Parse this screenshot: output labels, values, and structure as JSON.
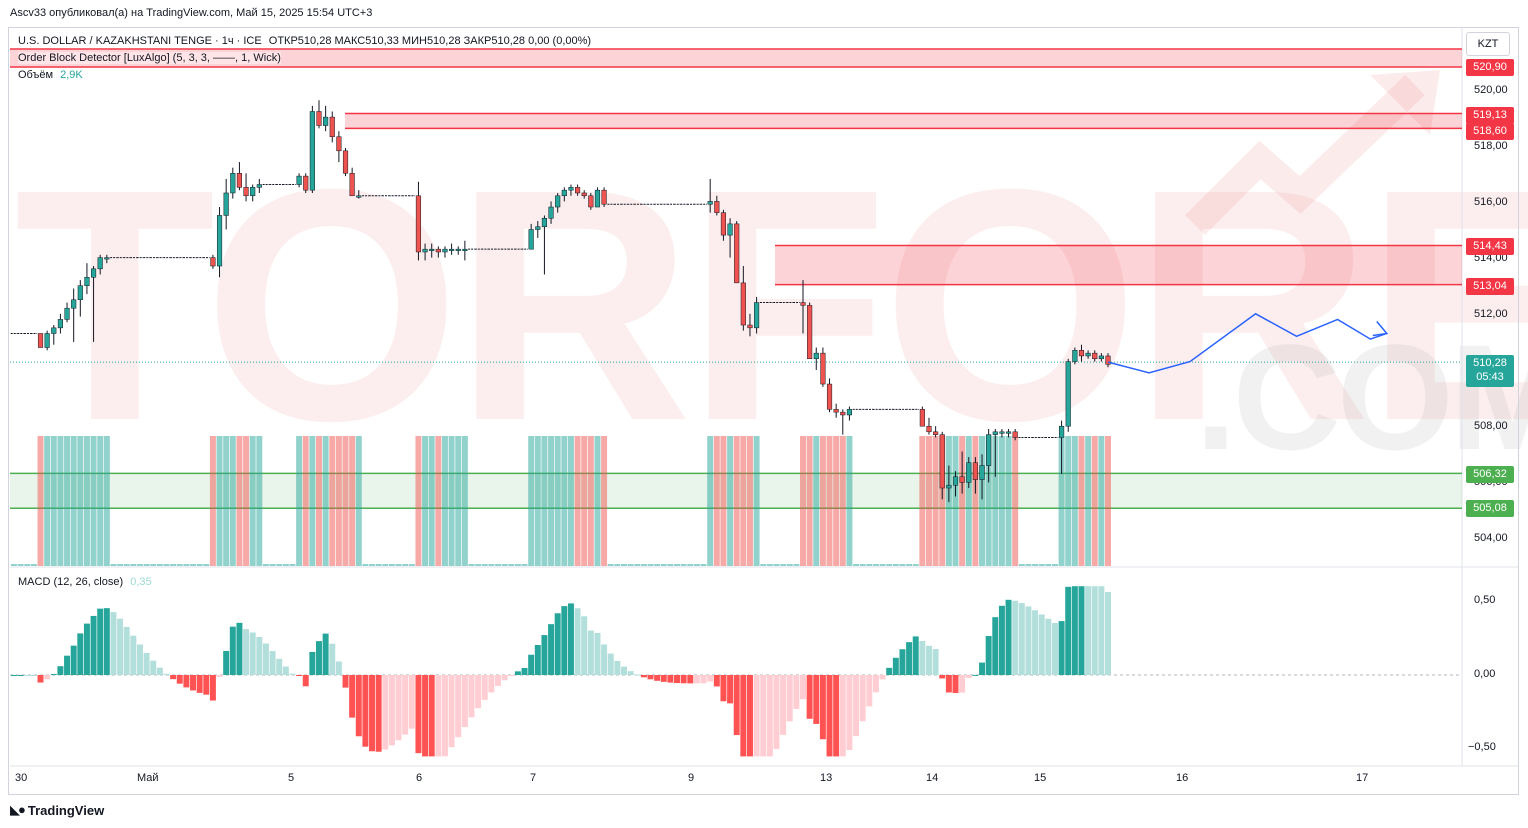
{
  "header": {
    "publisher_line": "Ascv33 опубликовал(а) на TradingView.com, Май 15, 2025 15:54 UTC+3"
  },
  "legend": {
    "symbol_line": "U.S. DOLLAR / KAZAKHSTANI TENGE · 1ч · ICE",
    "ohlc": "ОТКР510,28  МАКС510,33  МИН510,28  ЗАКР510,28  0,00 (0,00%)",
    "indicator": "Order Block Detector [LuxAlgo] (5, 3, 3, ——, 1, Wick)",
    "volume_label": "Объём",
    "volume_value": "2,9K",
    "macd_label": "MACD (12, 26, close)",
    "macd_value": "0,35"
  },
  "currency_button": "KZT",
  "price_axis": {
    "ticks": [
      "520,00",
      "518,00",
      "516,00",
      "514,00",
      "512,00",
      "508,00",
      "506,00",
      "504,00"
    ],
    "labels": [
      {
        "value": "520,90",
        "color": "#f23645"
      },
      {
        "value": "519,13",
        "color": "#f23645"
      },
      {
        "value": "518,60",
        "color": "#f23645"
      },
      {
        "value": "514,43",
        "color": "#f23645"
      },
      {
        "value": "513,04",
        "color": "#f23645"
      },
      {
        "value": "510,28",
        "sub": "05:43",
        "color": "#26a69a"
      },
      {
        "value": "506,32",
        "color": "#4caf50"
      },
      {
        "value": "505,08",
        "color": "#4caf50"
      }
    ]
  },
  "macd_axis": {
    "ticks": [
      "0,50",
      "0,00",
      "−0,50"
    ]
  },
  "date_axis": {
    "ticks": [
      "30",
      "Май",
      "5",
      "6",
      "7",
      "9",
      "13",
      "14",
      "15",
      "16",
      "17"
    ]
  },
  "watermark": {
    "main": "TORFOREX",
    "sub": ".COM"
  },
  "colors": {
    "up": "#26a69a",
    "down": "#ef5350",
    "bear_zone": "#f23645",
    "bull_zone": "#4caf50",
    "forecast": "#2962ff"
  },
  "footer": {
    "brand": "TradingView"
  },
  "chart_data": {
    "type": "candlestick",
    "price_range": [
      503,
      522
    ],
    "order_blocks": [
      {
        "kind": "bearish",
        "top": 520.9,
        "bottom": 520.9
      },
      {
        "kind": "bearish",
        "top": 519.13,
        "bottom": 518.6
      },
      {
        "kind": "bearish",
        "top": 514.43,
        "bottom": 513.04
      },
      {
        "kind": "bullish",
        "top": 506.32,
        "bottom": 505.08
      }
    ],
    "last_price": 510.28,
    "candles": [
      [
        511.3,
        511.3,
        511.2,
        511.3
      ],
      [
        511.3,
        511.3,
        511.2,
        511.3
      ],
      [
        511.3,
        511.3,
        511.2,
        511.3
      ],
      [
        511.3,
        511.3,
        511.2,
        511.3
      ],
      [
        511.3,
        511.3,
        510.8,
        510.8
      ],
      [
        510.8,
        511.4,
        510.7,
        511.3
      ],
      [
        511.3,
        511.6,
        510.9,
        511.5
      ],
      [
        511.5,
        512.0,
        511.3,
        511.8
      ],
      [
        511.8,
        512.4,
        511.7,
        512.2
      ],
      [
        512.2,
        512.9,
        511.0,
        512.5
      ],
      [
        512.5,
        513.2,
        511.9,
        513.0
      ],
      [
        513.0,
        513.8,
        512.7,
        513.3
      ],
      [
        513.3,
        513.7,
        511.0,
        513.6
      ],
      [
        513.6,
        514.1,
        513.4,
        514.0
      ],
      [
        514.0,
        514.1,
        513.8,
        514.0
      ],
      [
        514.0,
        514.1,
        513.9,
        514.0
      ],
      [
        514.0,
        514.1,
        513.9,
        514.0
      ],
      [
        514.0,
        514.1,
        513.9,
        514.0
      ],
      [
        514.0,
        514.1,
        513.9,
        514.0
      ],
      [
        514.0,
        514.1,
        513.9,
        514.0
      ],
      [
        514.0,
        514.1,
        513.9,
        514.0
      ],
      [
        514.0,
        514.1,
        513.9,
        514.0
      ],
      [
        514.0,
        514.1,
        513.9,
        514.0
      ],
      [
        514.0,
        514.1,
        513.9,
        514.0
      ],
      [
        514.0,
        514.1,
        513.9,
        514.0
      ],
      [
        514.0,
        514.1,
        513.9,
        514.0
      ],
      [
        514.0,
        514.1,
        513.9,
        514.0
      ],
      [
        514.0,
        514.1,
        513.9,
        514.0
      ],
      [
        514.0,
        514.1,
        513.9,
        514.0
      ],
      [
        514.0,
        514.1,
        513.9,
        514.0
      ],
      [
        514.0,
        514.1,
        513.6,
        513.7
      ],
      [
        513.7,
        515.8,
        513.3,
        515.5
      ],
      [
        515.5,
        516.8,
        515.0,
        516.3
      ],
      [
        516.3,
        517.2,
        516.1,
        517.0
      ],
      [
        517.0,
        517.4,
        516.4,
        516.5
      ],
      [
        516.5,
        517.0,
        516.0,
        516.2
      ],
      [
        516.2,
        516.6,
        516.0,
        516.5
      ],
      [
        516.5,
        516.8,
        516.3,
        516.6
      ],
      [
        516.6,
        516.7,
        516.5,
        516.6
      ],
      [
        516.6,
        516.7,
        516.5,
        516.6
      ],
      [
        516.6,
        516.7,
        516.5,
        516.6
      ],
      [
        516.6,
        516.7,
        516.5,
        516.6
      ],
      [
        516.6,
        516.7,
        516.5,
        516.6
      ],
      [
        516.6,
        517.0,
        516.5,
        516.9
      ],
      [
        516.9,
        517.0,
        516.3,
        516.4
      ],
      [
        516.4,
        519.4,
        516.3,
        519.2
      ],
      [
        519.2,
        519.6,
        518.6,
        518.7
      ],
      [
        518.7,
        519.4,
        518.5,
        519.0
      ],
      [
        519.0,
        519.2,
        518.1,
        518.3
      ],
      [
        518.3,
        518.5,
        517.4,
        517.8
      ],
      [
        517.8,
        517.9,
        516.9,
        517.0
      ],
      [
        517.0,
        517.2,
        516.2,
        516.2
      ],
      [
        516.2,
        516.4,
        516.1,
        516.2
      ],
      [
        516.2,
        516.3,
        516.1,
        516.2
      ],
      [
        516.2,
        516.3,
        516.1,
        516.2
      ],
      [
        516.2,
        516.3,
        516.1,
        516.2
      ],
      [
        516.2,
        516.3,
        516.1,
        516.2
      ],
      [
        516.2,
        516.3,
        516.1,
        516.2
      ],
      [
        516.2,
        516.3,
        516.1,
        516.2
      ],
      [
        516.2,
        516.3,
        516.1,
        516.2
      ],
      [
        516.2,
        516.3,
        516.1,
        516.2
      ],
      [
        516.2,
        516.7,
        513.9,
        514.2
      ],
      [
        514.2,
        514.5,
        513.9,
        514.3
      ],
      [
        514.3,
        514.5,
        514.0,
        514.3
      ],
      [
        514.3,
        514.4,
        514.0,
        514.2
      ],
      [
        514.2,
        514.4,
        514.0,
        514.3
      ],
      [
        514.3,
        514.5,
        514.1,
        514.3
      ],
      [
        514.3,
        514.4,
        514.1,
        514.3
      ],
      [
        514.3,
        514.6,
        513.9,
        514.3
      ],
      [
        514.3,
        514.4,
        514.2,
        514.3
      ],
      [
        514.3,
        514.4,
        514.2,
        514.3
      ],
      [
        514.3,
        514.4,
        514.2,
        514.3
      ],
      [
        514.3,
        514.4,
        514.2,
        514.3
      ],
      [
        514.3,
        514.4,
        514.2,
        514.3
      ],
      [
        514.3,
        514.4,
        514.2,
        514.3
      ],
      [
        514.3,
        514.4,
        514.2,
        514.3
      ],
      [
        514.3,
        514.4,
        514.2,
        514.3
      ],
      [
        514.3,
        514.4,
        514.2,
        514.3
      ],
      [
        514.3,
        515.2,
        514.3,
        515.0
      ],
      [
        515.0,
        515.3,
        514.7,
        515.1
      ],
      [
        515.1,
        515.5,
        513.4,
        515.4
      ],
      [
        515.4,
        516.0,
        515.2,
        515.8
      ],
      [
        515.8,
        516.3,
        515.6,
        516.2
      ],
      [
        516.2,
        516.5,
        516.0,
        516.4
      ],
      [
        516.4,
        516.6,
        516.2,
        516.5
      ],
      [
        516.5,
        516.6,
        516.2,
        516.3
      ],
      [
        516.3,
        516.4,
        516.1,
        516.2
      ],
      [
        516.2,
        516.3,
        515.7,
        515.8
      ],
      [
        515.8,
        516.5,
        515.8,
        516.4
      ],
      [
        516.4,
        516.5,
        515.8,
        515.9
      ],
      [
        515.9,
        516.0,
        515.8,
        515.9
      ],
      [
        515.9,
        516.0,
        515.8,
        515.9
      ],
      [
        515.9,
        516.0,
        515.8,
        515.9
      ],
      [
        515.9,
        516.0,
        515.8,
        515.9
      ],
      [
        515.9,
        516.0,
        515.8,
        515.9
      ],
      [
        515.9,
        516.0,
        515.8,
        515.9
      ],
      [
        515.9,
        516.0,
        515.8,
        515.9
      ],
      [
        515.9,
        516.0,
        515.8,
        515.9
      ],
      [
        515.9,
        516.0,
        515.8,
        515.9
      ],
      [
        515.9,
        516.0,
        515.8,
        515.9
      ],
      [
        515.9,
        516.0,
        515.8,
        515.9
      ],
      [
        515.9,
        516.0,
        515.8,
        515.9
      ],
      [
        515.9,
        516.0,
        515.8,
        515.9
      ],
      [
        515.9,
        516.0,
        515.8,
        515.9
      ],
      [
        515.9,
        516.0,
        515.8,
        515.9
      ],
      [
        515.9,
        516.8,
        515.6,
        516.0
      ],
      [
        516.0,
        516.2,
        515.5,
        515.6
      ],
      [
        515.6,
        515.7,
        514.6,
        514.8
      ],
      [
        514.8,
        515.4,
        514.0,
        515.2
      ],
      [
        515.2,
        515.3,
        513.1,
        513.1
      ],
      [
        513.1,
        513.7,
        511.4,
        511.6
      ],
      [
        511.6,
        512.0,
        511.2,
        511.5
      ],
      [
        511.5,
        512.6,
        511.3,
        512.4
      ],
      [
        512.4,
        512.5,
        512.3,
        512.4
      ],
      [
        512.4,
        512.5,
        512.3,
        512.4
      ],
      [
        512.4,
        512.5,
        512.3,
        512.4
      ],
      [
        512.4,
        512.5,
        512.3,
        512.4
      ],
      [
        512.4,
        512.5,
        512.3,
        512.4
      ],
      [
        512.4,
        512.5,
        512.3,
        512.4
      ],
      [
        512.4,
        513.2,
        511.3,
        512.3
      ],
      [
        512.3,
        512.4,
        510.4,
        510.4
      ],
      [
        510.4,
        510.8,
        510.0,
        510.6
      ],
      [
        510.6,
        510.8,
        509.4,
        509.5
      ],
      [
        509.5,
        509.7,
        508.5,
        508.6
      ],
      [
        508.6,
        508.8,
        508.3,
        508.5
      ],
      [
        508.5,
        508.6,
        507.7,
        508.4
      ],
      [
        508.4,
        508.7,
        508.2,
        508.6
      ],
      [
        508.6,
        508.7,
        508.5,
        508.6
      ],
      [
        508.6,
        508.7,
        508.5,
        508.6
      ],
      [
        508.6,
        508.7,
        508.5,
        508.6
      ],
      [
        508.6,
        508.7,
        508.5,
        508.6
      ],
      [
        508.6,
        508.7,
        508.5,
        508.6
      ],
      [
        508.6,
        508.7,
        508.5,
        508.6
      ],
      [
        508.6,
        508.7,
        508.5,
        508.6
      ],
      [
        508.6,
        508.7,
        508.5,
        508.6
      ],
      [
        508.6,
        508.7,
        508.5,
        508.6
      ],
      [
        508.6,
        508.7,
        508.5,
        508.6
      ],
      [
        508.6,
        508.7,
        508.0,
        508.0
      ],
      [
        508.0,
        508.3,
        507.7,
        507.8
      ],
      [
        507.8,
        508.0,
        507.6,
        507.7
      ],
      [
        507.7,
        507.8,
        505.4,
        505.8
      ],
      [
        505.8,
        506.6,
        505.3,
        505.9
      ],
      [
        505.9,
        506.4,
        505.5,
        506.2
      ],
      [
        506.2,
        507.1,
        505.6,
        506.0
      ],
      [
        506.0,
        506.9,
        505.8,
        506.7
      ],
      [
        506.7,
        506.9,
        505.6,
        506.1
      ],
      [
        506.1,
        507.0,
        505.4,
        506.6
      ],
      [
        506.6,
        507.9,
        506.0,
        507.7
      ],
      [
        507.7,
        507.9,
        506.2,
        507.8
      ],
      [
        507.8,
        507.9,
        507.6,
        507.8
      ],
      [
        507.8,
        507.9,
        507.6,
        507.8
      ],
      [
        507.8,
        507.9,
        507.5,
        507.6
      ],
      [
        507.6,
        507.7,
        507.5,
        507.6
      ],
      [
        507.6,
        507.7,
        507.5,
        507.6
      ],
      [
        507.6,
        507.7,
        507.5,
        507.6
      ],
      [
        507.6,
        507.7,
        507.5,
        507.6
      ],
      [
        507.6,
        507.7,
        507.5,
        507.6
      ],
      [
        507.6,
        507.7,
        507.5,
        507.6
      ],
      [
        507.6,
        508.2,
        506.3,
        508.0
      ],
      [
        508.0,
        510.4,
        507.8,
        510.3
      ],
      [
        510.3,
        510.8,
        510.2,
        510.7
      ],
      [
        510.7,
        510.9,
        510.3,
        510.5
      ],
      [
        510.5,
        510.7,
        510.4,
        510.6
      ],
      [
        510.6,
        510.7,
        510.3,
        510.4
      ],
      [
        510.4,
        510.6,
        510.3,
        510.5
      ],
      [
        510.5,
        510.6,
        510.1,
        510.2
      ]
    ],
    "forecast": [
      [
        510.28,
        0
      ],
      [
        509.9,
        5
      ],
      [
        510.3,
        10
      ],
      [
        512.0,
        18
      ],
      [
        511.2,
        23
      ],
      [
        511.8,
        28
      ],
      [
        511.1,
        32
      ],
      [
        511.3,
        34
      ]
    ],
    "macd": {
      "range": [
        -0.65,
        0.75
      ]
    }
  }
}
